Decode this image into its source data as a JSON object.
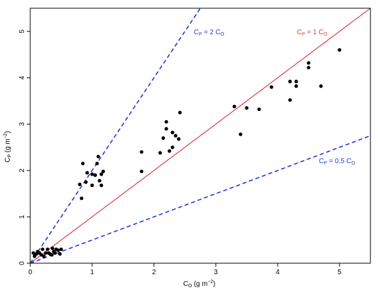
{
  "colors": {
    "points": "#000000",
    "one_to_one": "#dc3c46",
    "ref_lines": "#1f3bd6",
    "axes": "#000000"
  },
  "chart_data": {
    "type": "scatter",
    "title": "",
    "xlabel": {
      "base": "C",
      "sub": "O",
      "unit_prefix": "g m",
      "unit_exp": "−2"
    },
    "ylabel": {
      "base": "C",
      "sub": "P",
      "unit_prefix": "g m",
      "unit_exp": "−2"
    },
    "xlim": [
      0,
      5.5
    ],
    "ylim": [
      0,
      5.5
    ],
    "x_ticks": [
      0,
      1,
      2,
      3,
      4,
      5
    ],
    "y_ticks": [
      0,
      1,
      2,
      3,
      4,
      5
    ],
    "grid": false,
    "series": [
      {
        "points": [
          [
            0.05,
            0.22
          ],
          [
            0.07,
            0.15
          ],
          [
            0.1,
            0.2
          ],
          [
            0.12,
            0.25
          ],
          [
            0.15,
            0.22
          ],
          [
            0.18,
            0.18
          ],
          [
            0.2,
            0.3
          ],
          [
            0.22,
            0.15
          ],
          [
            0.28,
            0.3
          ],
          [
            0.3,
            0.22
          ],
          [
            0.32,
            0.2
          ],
          [
            0.35,
            0.18
          ],
          [
            0.38,
            0.25
          ],
          [
            0.4,
            0.22
          ],
          [
            0.42,
            0.3
          ],
          [
            0.45,
            0.28
          ],
          [
            0.48,
            0.2
          ],
          [
            0.5,
            0.3
          ],
          [
            0.36,
            0.32
          ],
          [
            0.25,
            0.22
          ],
          [
            0.8,
            1.7
          ],
          [
            0.83,
            1.4
          ],
          [
            0.85,
            2.15
          ],
          [
            0.9,
            1.75
          ],
          [
            0.92,
            1.95
          ],
          [
            1.0,
            1.92
          ],
          [
            1.0,
            1.68
          ],
          [
            1.05,
            1.9
          ],
          [
            1.08,
            2.15
          ],
          [
            1.1,
            2.3
          ],
          [
            1.12,
            1.78
          ],
          [
            1.15,
            1.68
          ],
          [
            1.15,
            1.92
          ],
          [
            1.18,
            1.98
          ],
          [
            1.8,
            2.4
          ],
          [
            1.8,
            1.98
          ],
          [
            2.1,
            2.38
          ],
          [
            2.15,
            2.7
          ],
          [
            2.2,
            3.05
          ],
          [
            2.2,
            2.9
          ],
          [
            2.25,
            2.42
          ],
          [
            2.3,
            2.5
          ],
          [
            2.3,
            2.82
          ],
          [
            2.35,
            2.75
          ],
          [
            2.4,
            2.68
          ],
          [
            2.42,
            3.25
          ],
          [
            3.3,
            3.38
          ],
          [
            3.4,
            2.78
          ],
          [
            3.5,
            3.35
          ],
          [
            3.7,
            3.32
          ],
          [
            3.9,
            3.8
          ],
          [
            4.2,
            3.52
          ],
          [
            4.2,
            3.92
          ],
          [
            4.3,
            3.82
          ],
          [
            4.3,
            3.92
          ],
          [
            4.5,
            4.22
          ],
          [
            4.5,
            4.32
          ],
          [
            4.7,
            3.82
          ],
          [
            5.0,
            4.6
          ]
        ]
      }
    ],
    "reference_lines": [
      {
        "slope": 2,
        "style": "dashed",
        "color_key": "ref_lines",
        "label": {
          "base": "C",
          "sub": "P",
          "mid": " = 2 C",
          "sub2": "O"
        }
      },
      {
        "slope": 1,
        "style": "solid",
        "color_key": "one_to_one",
        "label": {
          "base": "C",
          "sub": "P",
          "mid": " = 1 C",
          "sub2": "O"
        }
      },
      {
        "slope": 0.5,
        "style": "dashed",
        "color_key": "ref_lines",
        "label": {
          "base": "C",
          "sub": "P",
          "mid": " = 0.5 C",
          "sub2": "O"
        }
      }
    ]
  }
}
